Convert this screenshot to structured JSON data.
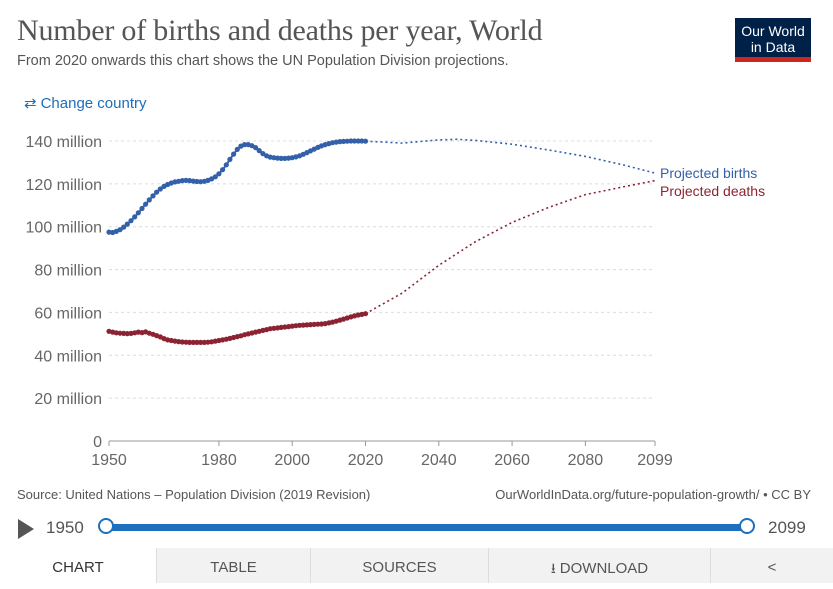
{
  "header": {
    "title": "Number of births and deaths per year, World",
    "subtitle": "From 2020 onwards this chart shows the UN Population Division projections.",
    "logo_line1": "Our World",
    "logo_line2": "in Data",
    "change_country_label": "Change country",
    "change_country_icon": "swap-arrows-icon"
  },
  "colors": {
    "births": "#3360a9",
    "deaths": "#8b2332",
    "accent": "#1e6fbf",
    "logo_bg": "#002147",
    "logo_bar": "#ce261e"
  },
  "chart_data": {
    "type": "line",
    "title": "Number of births and deaths per year, World",
    "x_ticks": [
      "1950",
      "1980",
      "2000",
      "2020",
      "2040",
      "2060",
      "2080",
      "2099"
    ],
    "y_ticks": [
      "0",
      "20 million",
      "40 million",
      "60 million",
      "80 million",
      "100 million",
      "120 million",
      "140 million"
    ],
    "xlim": [
      1950,
      2099
    ],
    "ylim": [
      0,
      140
    ],
    "y_unit": "million",
    "grid": true,
    "series": [
      {
        "name": "Births",
        "color": "#3360a9",
        "historical": [
          [
            1950,
            97.5
          ],
          [
            1951,
            97.3
          ],
          [
            1952,
            97.8
          ],
          [
            1953,
            98.6
          ],
          [
            1954,
            99.8
          ],
          [
            1955,
            101.2
          ],
          [
            1956,
            102.8
          ],
          [
            1957,
            104.6
          ],
          [
            1958,
            106.5
          ],
          [
            1959,
            108.5
          ],
          [
            1960,
            110.5
          ],
          [
            1961,
            112.5
          ],
          [
            1962,
            114.4
          ],
          [
            1963,
            116.1
          ],
          [
            1964,
            117.6
          ],
          [
            1965,
            118.8
          ],
          [
            1966,
            119.7
          ],
          [
            1967,
            120.4
          ],
          [
            1968,
            120.9
          ],
          [
            1969,
            121.2
          ],
          [
            1970,
            121.5
          ],
          [
            1971,
            121.6
          ],
          [
            1972,
            121.5
          ],
          [
            1973,
            121.3
          ],
          [
            1974,
            121.1
          ],
          [
            1975,
            121.0
          ],
          [
            1976,
            121.2
          ],
          [
            1977,
            121.6
          ],
          [
            1978,
            122.3
          ],
          [
            1979,
            123.3
          ],
          [
            1980,
            124.7
          ],
          [
            1981,
            126.6
          ],
          [
            1982,
            128.9
          ],
          [
            1983,
            131.4
          ],
          [
            1984,
            133.9
          ],
          [
            1985,
            136.1
          ],
          [
            1986,
            137.6
          ],
          [
            1987,
            138.3
          ],
          [
            1988,
            138.3
          ],
          [
            1989,
            137.8
          ],
          [
            1990,
            136.9
          ],
          [
            1991,
            135.5
          ],
          [
            1992,
            134.1
          ],
          [
            1993,
            133.1
          ],
          [
            1994,
            132.5
          ],
          [
            1995,
            132.2
          ],
          [
            1996,
            132.0
          ],
          [
            1997,
            131.9
          ],
          [
            1998,
            131.9
          ],
          [
            1999,
            132.0
          ],
          [
            2000,
            132.2
          ],
          [
            2001,
            132.6
          ],
          [
            2002,
            133.1
          ],
          [
            2003,
            133.8
          ],
          [
            2004,
            134.6
          ],
          [
            2005,
            135.4
          ],
          [
            2006,
            136.2
          ],
          [
            2007,
            137.0
          ],
          [
            2008,
            137.7
          ],
          [
            2009,
            138.3
          ],
          [
            2010,
            138.8
          ],
          [
            2011,
            139.2
          ],
          [
            2012,
            139.5
          ],
          [
            2013,
            139.7
          ],
          [
            2014,
            139.8
          ],
          [
            2015,
            139.9
          ],
          [
            2016,
            140.0
          ],
          [
            2017,
            140.0
          ],
          [
            2018,
            140.0
          ],
          [
            2019,
            140.0
          ],
          [
            2020,
            139.9
          ]
        ],
        "projection": [
          [
            2020,
            139.9
          ],
          [
            2030,
            139.0
          ],
          [
            2040,
            140.5
          ],
          [
            2045,
            140.8
          ],
          [
            2050,
            140.3
          ],
          [
            2060,
            138.5
          ],
          [
            2070,
            135.8
          ],
          [
            2080,
            132.8
          ],
          [
            2090,
            129.0
          ],
          [
            2099,
            125.0
          ]
        ],
        "label": "Projected births"
      },
      {
        "name": "Deaths",
        "color": "#8b2332",
        "historical": [
          [
            1950,
            51.2
          ],
          [
            1951,
            50.8
          ],
          [
            1952,
            50.5
          ],
          [
            1953,
            50.3
          ],
          [
            1954,
            50.2
          ],
          [
            1955,
            50.1
          ],
          [
            1956,
            50.2
          ],
          [
            1957,
            50.5
          ],
          [
            1958,
            50.8
          ],
          [
            1959,
            50.6
          ],
          [
            1960,
            50.9
          ],
          [
            1961,
            50.3
          ],
          [
            1962,
            49.8
          ],
          [
            1963,
            49.2
          ],
          [
            1964,
            48.6
          ],
          [
            1965,
            47.8
          ],
          [
            1966,
            47.2
          ],
          [
            1967,
            46.9
          ],
          [
            1968,
            46.6
          ],
          [
            1969,
            46.4
          ],
          [
            1970,
            46.2
          ],
          [
            1971,
            46.1
          ],
          [
            1972,
            46.0
          ],
          [
            1973,
            46.0
          ],
          [
            1974,
            46.0
          ],
          [
            1975,
            46.0
          ],
          [
            1976,
            46.0
          ],
          [
            1977,
            46.1
          ],
          [
            1978,
            46.3
          ],
          [
            1979,
            46.6
          ],
          [
            1980,
            46.9
          ],
          [
            1981,
            47.2
          ],
          [
            1982,
            47.5
          ],
          [
            1983,
            47.9
          ],
          [
            1984,
            48.3
          ],
          [
            1985,
            48.7
          ],
          [
            1986,
            49.1
          ],
          [
            1987,
            49.6
          ],
          [
            1988,
            50.0
          ],
          [
            1989,
            50.4
          ],
          [
            1990,
            50.8
          ],
          [
            1991,
            51.2
          ],
          [
            1992,
            51.6
          ],
          [
            1993,
            52.0
          ],
          [
            1994,
            52.4
          ],
          [
            1995,
            52.6
          ],
          [
            1996,
            52.8
          ],
          [
            1997,
            53.0
          ],
          [
            1998,
            53.2
          ],
          [
            1999,
            53.4
          ],
          [
            2000,
            53.6
          ],
          [
            2001,
            53.8
          ],
          [
            2002,
            54.0
          ],
          [
            2003,
            54.1
          ],
          [
            2004,
            54.2
          ],
          [
            2005,
            54.3
          ],
          [
            2006,
            54.4
          ],
          [
            2007,
            54.5
          ],
          [
            2008,
            54.6
          ],
          [
            2009,
            54.8
          ],
          [
            2010,
            55.1
          ],
          [
            2011,
            55.5
          ],
          [
            2012,
            55.9
          ],
          [
            2013,
            56.4
          ],
          [
            2014,
            56.9
          ],
          [
            2015,
            57.4
          ],
          [
            2016,
            57.9
          ],
          [
            2017,
            58.4
          ],
          [
            2018,
            58.8
          ],
          [
            2019,
            59.1
          ],
          [
            2020,
            59.4
          ]
        ],
        "projection": [
          [
            2020,
            59.4
          ],
          [
            2030,
            69.0
          ],
          [
            2040,
            82.0
          ],
          [
            2050,
            93.0
          ],
          [
            2060,
            102.0
          ],
          [
            2070,
            109.0
          ],
          [
            2080,
            115.0
          ],
          [
            2090,
            118.5
          ],
          [
            2099,
            121.5
          ]
        ],
        "label": "Projected deaths"
      }
    ]
  },
  "footer": {
    "source": "Source: United Nations – Population Division (2019 Revision)",
    "url": "OurWorldInData.org/future-population-growth/ • CC BY"
  },
  "timeline": {
    "start_label": "1950",
    "end_label": "2099",
    "play_icon": "play-icon"
  },
  "tabs": {
    "chart": "CHART",
    "table": "TABLE",
    "sources": "SOURCES",
    "download": "DOWNLOAD",
    "download_icon": "download-icon",
    "share_icon": "share-icon"
  }
}
